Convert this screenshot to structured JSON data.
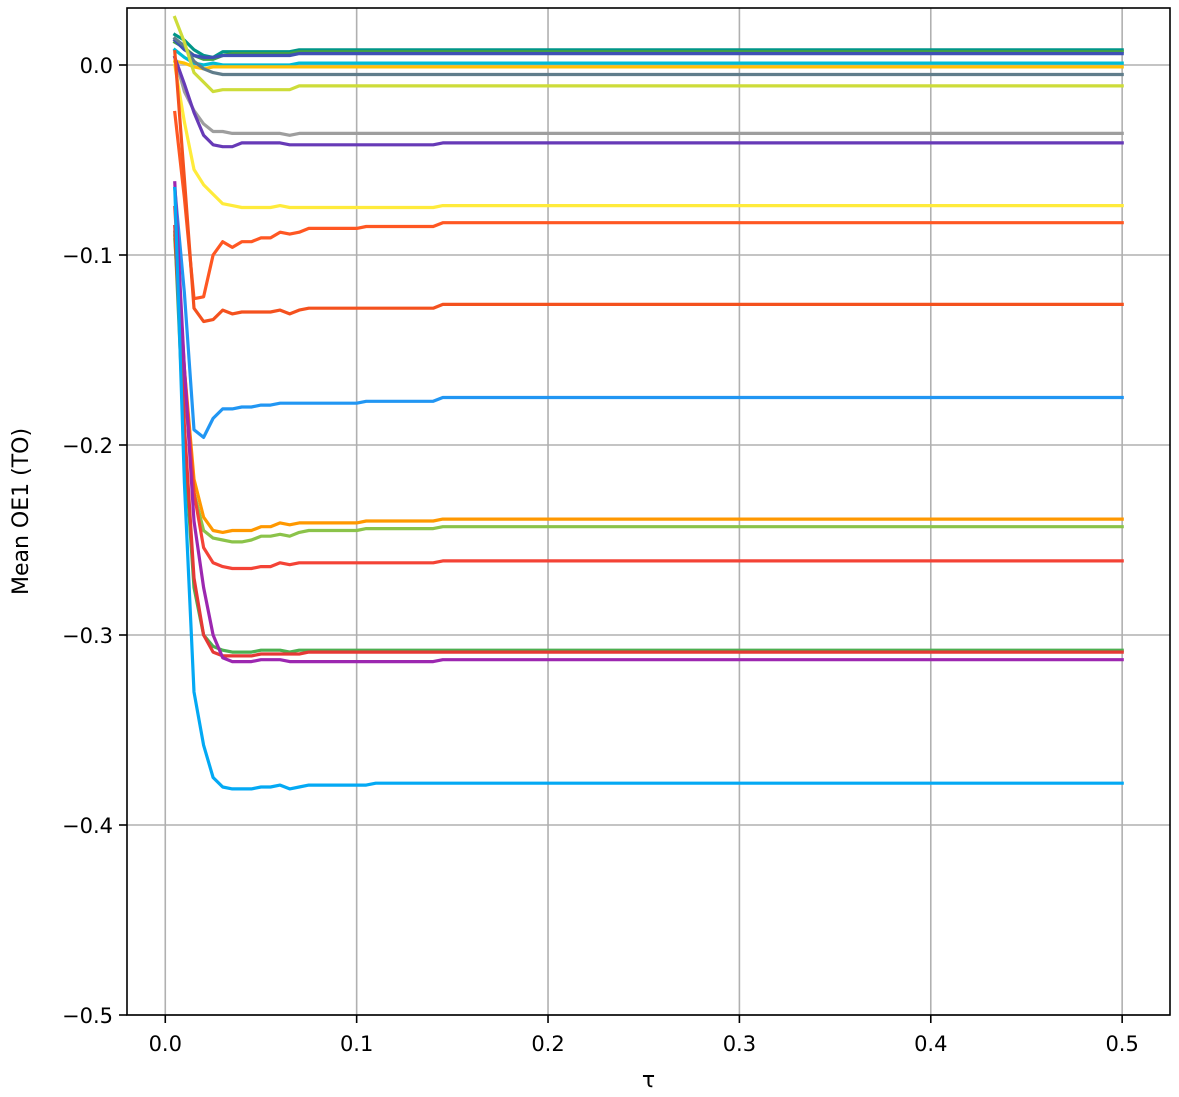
{
  "chart_data": {
    "type": "line",
    "title": "",
    "xlabel": "τ",
    "ylabel": "Mean OE1 (TO)",
    "xlim": [
      -0.02,
      0.525
    ],
    "ylim": [
      -0.5,
      0.03
    ],
    "grid": true,
    "x_ticks": [
      0.0,
      0.1,
      0.2,
      0.3,
      0.4,
      0.5
    ],
    "x_tick_labels": [
      "0.0",
      "0.1",
      "0.2",
      "0.3",
      "0.4",
      "0.5"
    ],
    "y_ticks": [
      0.0,
      -0.1,
      -0.2,
      -0.3,
      -0.4,
      -0.5
    ],
    "y_tick_labels": [
      "0.0",
      "−0.1",
      "−0.2",
      "−0.3",
      "−0.4",
      "−0.5"
    ],
    "x": [
      0.005,
      0.01,
      0.015,
      0.02,
      0.025,
      0.03,
      0.035,
      0.04,
      0.045,
      0.05,
      0.055,
      0.06,
      0.065,
      0.07,
      0.075,
      0.08,
      0.09,
      0.1,
      0.105,
      0.11,
      0.14,
      0.145,
      0.15,
      0.2,
      0.3,
      0.4,
      0.5
    ],
    "series": [
      {
        "color": "#009688",
        "values": [
          0.016,
          0.013,
          0.008,
          0.005,
          0.004,
          0.007,
          0.007,
          0.007,
          0.007,
          0.007,
          0.007,
          0.007,
          0.007,
          0.008,
          0.008,
          0.008,
          0.008,
          0.008,
          0.008,
          0.008,
          0.008,
          0.008,
          0.008,
          0.008,
          0.008,
          0.008,
          0.008
        ]
      },
      {
        "color": "#43A047",
        "values": [
          0.012,
          0.009,
          0.005,
          0.003,
          0.003,
          0.005,
          0.006,
          0.006,
          0.006,
          0.006,
          0.006,
          0.006,
          0.006,
          0.007,
          0.007,
          0.007,
          0.007,
          0.007,
          0.007,
          0.007,
          0.007,
          0.007,
          0.007,
          0.007,
          0.007,
          0.007,
          0.007
        ]
      },
      {
        "color": "#3F51B5",
        "values": [
          0.013,
          0.008,
          0.005,
          0.004,
          0.004,
          0.005,
          0.005,
          0.005,
          0.005,
          0.005,
          0.005,
          0.005,
          0.005,
          0.006,
          0.006,
          0.006,
          0.006,
          0.006,
          0.006,
          0.006,
          0.006,
          0.006,
          0.006,
          0.006,
          0.006,
          0.006,
          0.006
        ]
      },
      {
        "color": "#00BCD4",
        "values": [
          0.008,
          0.004,
          0.001,
          0.0,
          0.001,
          0.0,
          0.0,
          0.0,
          0.0,
          0.0,
          0.0,
          0.0,
          0.0,
          0.001,
          0.001,
          0.001,
          0.001,
          0.001,
          0.001,
          0.001,
          0.001,
          0.001,
          0.001,
          0.001,
          0.001,
          0.001,
          0.001
        ]
      },
      {
        "color": "#FFC107",
        "values": [
          0.002,
          0.001,
          -0.001,
          -0.002,
          -0.001,
          -0.001,
          -0.001,
          -0.001,
          -0.001,
          -0.001,
          -0.001,
          -0.001,
          -0.001,
          -0.001,
          -0.001,
          -0.001,
          -0.001,
          -0.001,
          -0.001,
          -0.001,
          -0.001,
          -0.001,
          -0.001,
          -0.001,
          -0.001,
          -0.001,
          -0.001
        ]
      },
      {
        "color": "#607D8B",
        "values": [
          0.014,
          0.01,
          0.002,
          -0.002,
          -0.004,
          -0.005,
          -0.005,
          -0.005,
          -0.005,
          -0.005,
          -0.005,
          -0.005,
          -0.005,
          -0.005,
          -0.005,
          -0.005,
          -0.005,
          -0.005,
          -0.005,
          -0.005,
          -0.005,
          -0.005,
          -0.005,
          -0.005,
          -0.005,
          -0.005,
          -0.005
        ]
      },
      {
        "color": "#CDDC39",
        "values": [
          0.025,
          0.012,
          -0.004,
          -0.009,
          -0.014,
          -0.013,
          -0.013,
          -0.013,
          -0.013,
          -0.013,
          -0.013,
          -0.013,
          -0.013,
          -0.011,
          -0.011,
          -0.011,
          -0.011,
          -0.011,
          -0.011,
          -0.011,
          -0.011,
          -0.011,
          -0.011,
          -0.011,
          -0.011,
          -0.011,
          -0.011
        ]
      },
      {
        "color": "#9E9E9E",
        "values": [
          0.004,
          -0.014,
          -0.024,
          -0.031,
          -0.035,
          -0.035,
          -0.036,
          -0.036,
          -0.036,
          -0.036,
          -0.036,
          -0.036,
          -0.037,
          -0.036,
          -0.036,
          -0.036,
          -0.036,
          -0.036,
          -0.036,
          -0.036,
          -0.036,
          -0.036,
          -0.036,
          -0.036,
          -0.036,
          -0.036,
          -0.036
        ]
      },
      {
        "color": "#673AB7",
        "values": [
          0.004,
          -0.01,
          -0.025,
          -0.037,
          -0.042,
          -0.043,
          -0.043,
          -0.041,
          -0.041,
          -0.041,
          -0.041,
          -0.041,
          -0.042,
          -0.042,
          -0.042,
          -0.042,
          -0.042,
          -0.042,
          -0.042,
          -0.042,
          -0.042,
          -0.041,
          -0.041,
          -0.041,
          -0.041,
          -0.041,
          -0.041
        ]
      },
      {
        "color": "#FFEB3B",
        "values": [
          0.0,
          -0.03,
          -0.055,
          -0.063,
          -0.068,
          -0.073,
          -0.074,
          -0.075,
          -0.075,
          -0.075,
          -0.075,
          -0.074,
          -0.075,
          -0.075,
          -0.075,
          -0.075,
          -0.075,
          -0.075,
          -0.075,
          -0.075,
          -0.075,
          -0.074,
          -0.074,
          -0.074,
          -0.074,
          -0.074,
          -0.074
        ]
      },
      {
        "color": "#FF5722",
        "values": [
          -0.025,
          -0.07,
          -0.123,
          -0.122,
          -0.1,
          -0.093,
          -0.096,
          -0.093,
          -0.093,
          -0.091,
          -0.091,
          -0.088,
          -0.089,
          -0.088,
          -0.086,
          -0.086,
          -0.086,
          -0.086,
          -0.085,
          -0.085,
          -0.085,
          -0.083,
          -0.083,
          -0.083,
          -0.083,
          -0.083,
          -0.083
        ]
      },
      {
        "color": "#F4511E",
        "values": [
          0.007,
          -0.06,
          -0.128,
          -0.135,
          -0.134,
          -0.129,
          -0.131,
          -0.13,
          -0.13,
          -0.13,
          -0.13,
          -0.129,
          -0.131,
          -0.129,
          -0.128,
          -0.128,
          -0.128,
          -0.128,
          -0.128,
          -0.128,
          -0.128,
          -0.126,
          -0.126,
          -0.126,
          -0.126,
          -0.126,
          -0.126
        ]
      },
      {
        "color": "#2196F3",
        "values": [
          -0.065,
          -0.12,
          -0.192,
          -0.196,
          -0.186,
          -0.181,
          -0.181,
          -0.18,
          -0.18,
          -0.179,
          -0.179,
          -0.178,
          -0.178,
          -0.178,
          -0.178,
          -0.178,
          -0.178,
          -0.178,
          -0.177,
          -0.177,
          -0.177,
          -0.175,
          -0.175,
          -0.175,
          -0.175,
          -0.175,
          -0.175
        ]
      },
      {
        "color": "#FF9800",
        "values": [
          -0.09,
          -0.16,
          -0.218,
          -0.238,
          -0.245,
          -0.246,
          -0.245,
          -0.245,
          -0.245,
          -0.243,
          -0.243,
          -0.241,
          -0.242,
          -0.241,
          -0.241,
          -0.241,
          -0.241,
          -0.241,
          -0.24,
          -0.24,
          -0.24,
          -0.239,
          -0.239,
          -0.239,
          -0.239,
          -0.239,
          -0.239
        ]
      },
      {
        "color": "#8BC34A",
        "values": [
          -0.092,
          -0.17,
          -0.225,
          -0.245,
          -0.249,
          -0.25,
          -0.251,
          -0.251,
          -0.25,
          -0.248,
          -0.248,
          -0.247,
          -0.248,
          -0.246,
          -0.245,
          -0.245,
          -0.245,
          -0.245,
          -0.244,
          -0.244,
          -0.244,
          -0.243,
          -0.243,
          -0.243,
          -0.243,
          -0.243,
          -0.243
        ]
      },
      {
        "color": "#F44336",
        "values": [
          -0.075,
          -0.16,
          -0.225,
          -0.254,
          -0.262,
          -0.264,
          -0.265,
          -0.265,
          -0.265,
          -0.264,
          -0.264,
          -0.262,
          -0.263,
          -0.262,
          -0.262,
          -0.262,
          -0.262,
          -0.262,
          -0.262,
          -0.262,
          -0.262,
          -0.261,
          -0.261,
          -0.261,
          -0.261,
          -0.261,
          -0.261
        ]
      },
      {
        "color": "#4CAF50",
        "values": [
          -0.088,
          -0.2,
          -0.275,
          -0.3,
          -0.306,
          -0.308,
          -0.309,
          -0.309,
          -0.309,
          -0.308,
          -0.308,
          -0.308,
          -0.309,
          -0.308,
          -0.308,
          -0.308,
          -0.308,
          -0.308,
          -0.308,
          -0.308,
          -0.308,
          -0.308,
          -0.308,
          -0.308,
          -0.308,
          -0.308,
          -0.308
        ]
      },
      {
        "color": "#E53935",
        "values": [
          -0.085,
          -0.19,
          -0.27,
          -0.3,
          -0.309,
          -0.311,
          -0.311,
          -0.311,
          -0.311,
          -0.31,
          -0.31,
          -0.31,
          -0.31,
          -0.31,
          -0.309,
          -0.309,
          -0.309,
          -0.309,
          -0.309,
          -0.309,
          -0.309,
          -0.309,
          -0.309,
          -0.309,
          -0.309,
          -0.309,
          -0.309
        ]
      },
      {
        "color": "#9C27B0",
        "values": [
          -0.062,
          -0.16,
          -0.24,
          -0.275,
          -0.3,
          -0.312,
          -0.314,
          -0.314,
          -0.314,
          -0.313,
          -0.313,
          -0.313,
          -0.314,
          -0.314,
          -0.314,
          -0.314,
          -0.314,
          -0.314,
          -0.314,
          -0.314,
          -0.314,
          -0.313,
          -0.313,
          -0.313,
          -0.313,
          -0.313,
          -0.313
        ]
      },
      {
        "color": "#03A9F4",
        "values": [
          -0.065,
          -0.22,
          -0.33,
          -0.358,
          -0.375,
          -0.38,
          -0.381,
          -0.381,
          -0.381,
          -0.38,
          -0.38,
          -0.379,
          -0.381,
          -0.38,
          -0.379,
          -0.379,
          -0.379,
          -0.379,
          -0.379,
          -0.378,
          -0.378,
          -0.378,
          -0.378,
          -0.378,
          -0.378,
          -0.378,
          -0.378
        ]
      }
    ]
  }
}
